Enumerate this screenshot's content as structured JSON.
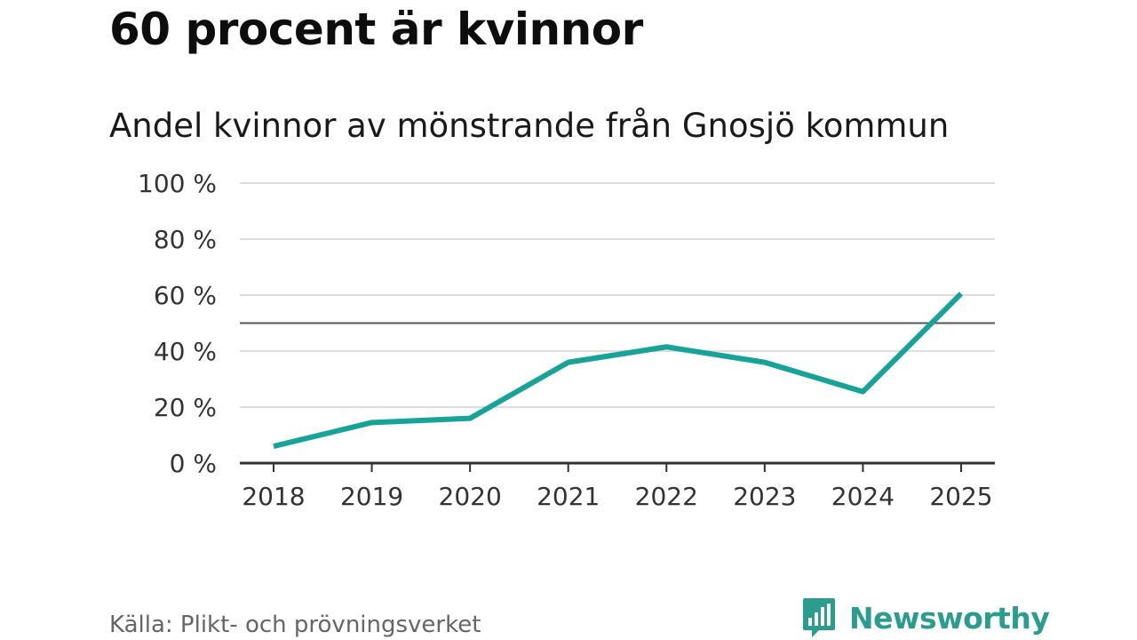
{
  "header": {
    "title": "60 procent är kvinnor",
    "subtitle": "Andel kvinnor av mönstrande från Gnosjö kommun"
  },
  "footer": {
    "source": "Källa: Plikt- och prövningsverket",
    "brand": "Newsworthy",
    "brand_icon": "bar-chart-speech-bubble-icon"
  },
  "colors": {
    "line": "#17a398",
    "grid": "#dddddd",
    "reference_line": "#555555",
    "axis": "#333333",
    "brand": "#2a9d8f"
  },
  "chart_data": {
    "type": "line",
    "x": [
      "2018",
      "2019",
      "2020",
      "2021",
      "2022",
      "2023",
      "2024",
      "2025"
    ],
    "series": [
      {
        "values": [
          6,
          14.5,
          16,
          36,
          41.5,
          36,
          25.5,
          60.5
        ]
      }
    ],
    "y_ticks": [
      0,
      20,
      40,
      60,
      80,
      100
    ],
    "y_tick_labels": [
      "0 %",
      "20 %",
      "40 %",
      "60 %",
      "80 %",
      "100 %"
    ],
    "ylim": [
      0,
      100
    ],
    "reference_line": 50,
    "grid": true,
    "legend": "none"
  }
}
